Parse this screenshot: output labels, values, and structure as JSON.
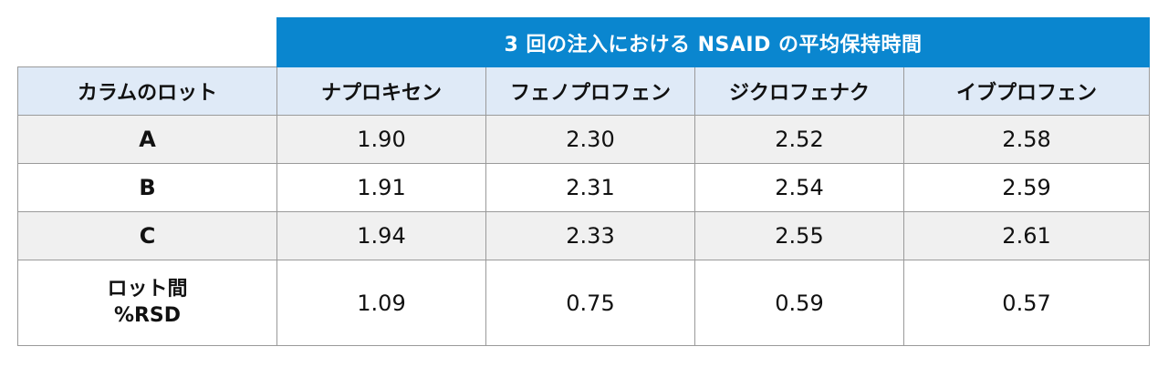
{
  "table": {
    "super_header": "3 回の注入における NSAID の平均保持時間",
    "headers": [
      "カラムのロット",
      "ナプロキセン",
      "フェノプロフェン",
      "ジクロフェナク",
      "イブプロフェン"
    ],
    "rows": [
      {
        "lot": "A",
        "values": [
          "1.90",
          "2.30",
          "2.52",
          "2.58"
        ]
      },
      {
        "lot": "B",
        "values": [
          "1.91",
          "2.31",
          "2.54",
          "2.59"
        ]
      },
      {
        "lot": "C",
        "values": [
          "1.94",
          "2.33",
          "2.55",
          "2.61"
        ]
      }
    ],
    "rsd_row": {
      "label_line1": "ロット間",
      "label_line2": "%RSD",
      "values": [
        "1.09",
        "0.75",
        "0.59",
        "0.57"
      ]
    }
  },
  "colors": {
    "super_header_bg": "#0a86cf",
    "header_bg": "#dfeaf7",
    "shaded_row_bg": "#f0f0f0",
    "border": "#9a9a9a"
  }
}
